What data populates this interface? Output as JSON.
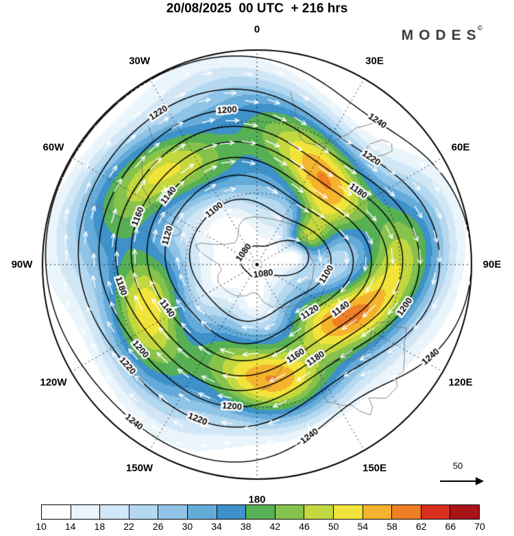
{
  "header": {
    "title": "20/08/2025  00 UTC  + 216 hrs",
    "logo_text": "MODES",
    "logo_sup": "©"
  },
  "reference_arrow": {
    "label": "50"
  },
  "chart_data": {
    "type": "heatmap",
    "projection": "south polar stereographic",
    "title": "20/08/2025 00 UTC + 216 hrs",
    "shaded_field": "wind speed",
    "contour_field": "geopotential height",
    "colorbar_range": [
      10,
      70
    ],
    "colorbar_bin_size": 4,
    "colorbar_ticks": [
      10,
      14,
      18,
      22,
      26,
      30,
      34,
      38,
      42,
      46,
      50,
      54,
      58,
      62,
      66,
      70
    ],
    "palette": [
      "#ffffff",
      "#eaf4fb",
      "#d2e7f6",
      "#b4d8f0",
      "#8fc4e7",
      "#65abd9",
      "#3e91c9",
      "#58b054",
      "#86c24c",
      "#c3d83f",
      "#f2e33b",
      "#f5b32e",
      "#ee7f24",
      "#d92f1e",
      "#a81418"
    ],
    "contour_levels": [
      1080,
      1100,
      1120,
      1140,
      1160,
      1180,
      1200,
      1220,
      1240
    ],
    "contour_labels": [
      {
        "level": 1080,
        "bearing": -48
      },
      {
        "level": 1080,
        "bearing": 146
      },
      {
        "level": 1100,
        "bearing": -38
      },
      {
        "level": 1100,
        "bearing": 98
      },
      {
        "level": 1120,
        "bearing": -72
      },
      {
        "level": 1120,
        "bearing": 132
      },
      {
        "level": 1140,
        "bearing": -116
      },
      {
        "level": 1140,
        "bearing": 118
      },
      {
        "level": 1140,
        "bearing": -52
      },
      {
        "level": 1160,
        "bearing": -68
      },
      {
        "level": 1160,
        "bearing": 157
      },
      {
        "level": 1180,
        "bearing": -99
      },
      {
        "level": 1180,
        "bearing": 54
      },
      {
        "level": 1180,
        "bearing": 148
      },
      {
        "level": 1200,
        "bearing": -11
      },
      {
        "level": 1200,
        "bearing": 106
      },
      {
        "level": 1200,
        "bearing": -126
      },
      {
        "level": 1200,
        "bearing": -170
      },
      {
        "level": 1220,
        "bearing": -33
      },
      {
        "level": 1220,
        "bearing": 47
      },
      {
        "level": 1220,
        "bearing": -128
      },
      {
        "level": 1220,
        "bearing": -159
      },
      {
        "level": 1240,
        "bearing": 40
      },
      {
        "level": 1240,
        "bearing": 118
      },
      {
        "level": 1240,
        "bearing": 163
      },
      {
        "level": 1240,
        "bearing": -142
      }
    ],
    "longitude_labels": [
      {
        "text": "0",
        "bearing": 0
      },
      {
        "text": "30E",
        "bearing": 30
      },
      {
        "text": "60E",
        "bearing": 60
      },
      {
        "text": "90E",
        "bearing": 90
      },
      {
        "text": "120E",
        "bearing": 120
      },
      {
        "text": "150E",
        "bearing": 150
      },
      {
        "text": "180",
        "bearing": 180
      },
      {
        "text": "150W",
        "bearing": 210
      },
      {
        "text": "120W",
        "bearing": 240
      },
      {
        "text": "90W",
        "bearing": 270
      },
      {
        "text": "60W",
        "bearing": 300
      },
      {
        "text": "30W",
        "bearing": 330
      }
    ],
    "latitude_circle_rhos": [
      0.3333,
      0.6667
    ],
    "meridian_step_deg": 30,
    "reference_arrow_value": 50
  },
  "coastlines": {
    "antarctica": [
      [
        0,
        -70
      ],
      [
        15,
        -70
      ],
      [
        30,
        -69
      ],
      [
        45,
        -67
      ],
      [
        60,
        -66
      ],
      [
        75,
        -68
      ],
      [
        90,
        -66
      ],
      [
        105,
        -66
      ],
      [
        120,
        -66
      ],
      [
        135,
        -66
      ],
      [
        150,
        -69
      ],
      [
        160,
        -71
      ],
      [
        170,
        -74
      ],
      [
        180,
        -78
      ],
      [
        190,
        -78
      ],
      [
        200,
        -76
      ],
      [
        215,
        -74
      ],
      [
        230,
        -73
      ],
      [
        245,
        -72
      ],
      [
        255,
        -73
      ],
      [
        262,
        -75
      ],
      [
        270,
        -74
      ],
      [
        276,
        -71
      ],
      [
        281,
        -67
      ],
      [
        285,
        -64
      ],
      [
        288,
        -63
      ],
      [
        291,
        -65
      ],
      [
        294,
        -69
      ],
      [
        298,
        -72
      ],
      [
        305,
        -75
      ],
      [
        315,
        -77
      ],
      [
        325,
        -76
      ],
      [
        335,
        -72
      ],
      [
        345,
        -70
      ],
      [
        355,
        -70
      ],
      [
        0,
        -70
      ]
    ],
    "australia": [
      [
        113,
        -22
      ],
      [
        114,
        -26
      ],
      [
        114,
        -31
      ],
      [
        116,
        -34
      ],
      [
        119,
        -35
      ],
      [
        124,
        -33
      ],
      [
        129,
        -32
      ],
      [
        132,
        -32
      ],
      [
        134,
        -33
      ],
      [
        136,
        -35
      ],
      [
        138,
        -35
      ],
      [
        140,
        -38
      ],
      [
        144,
        -39
      ],
      [
        147,
        -38
      ],
      [
        150,
        -37
      ],
      [
        152,
        -33
      ],
      [
        153,
        -28
      ],
      [
        153,
        -25
      ],
      [
        151,
        -24
      ],
      [
        149,
        -21
      ],
      [
        146,
        -19
      ],
      [
        145,
        -15
      ],
      [
        143,
        -11
      ],
      [
        141,
        -13
      ],
      [
        140,
        -17
      ],
      [
        136,
        -12
      ],
      [
        133,
        -12
      ],
      [
        131,
        -12
      ],
      [
        129,
        -15
      ],
      [
        126,
        -14
      ],
      [
        122,
        -17
      ],
      [
        118,
        -20
      ],
      [
        115,
        -21
      ],
      [
        113,
        -22
      ]
    ],
    "tasmania": [
      [
        145,
        -41
      ],
      [
        146,
        -43
      ],
      [
        148,
        -42
      ],
      [
        147,
        -41
      ],
      [
        145,
        -41
      ]
    ],
    "south_america": [
      [
        -70,
        -16
      ],
      [
        -70,
        -20
      ],
      [
        -70,
        -24
      ],
      [
        -71,
        -28
      ],
      [
        -71,
        -32
      ],
      [
        -72,
        -36
      ],
      [
        -73,
        -40
      ],
      [
        -74,
        -45
      ],
      [
        -74,
        -49
      ],
      [
        -72,
        -52
      ],
      [
        -69,
        -55
      ],
      [
        -66,
        -55
      ],
      [
        -65,
        -52
      ],
      [
        -65,
        -48
      ],
      [
        -64,
        -44
      ],
      [
        -62,
        -40
      ],
      [
        -58,
        -36
      ],
      [
        -56,
        -32
      ],
      [
        -51,
        -28
      ],
      [
        -48,
        -25
      ],
      [
        -44,
        -23
      ],
      [
        -40,
        -22
      ],
      [
        -38,
        -16
      ]
    ],
    "africa": [
      [
        11,
        -16
      ],
      [
        12,
        -19
      ],
      [
        14,
        -23
      ],
      [
        15,
        -27
      ],
      [
        17,
        -31
      ],
      [
        19,
        -34
      ],
      [
        22,
        -35
      ],
      [
        26,
        -34
      ],
      [
        29,
        -32
      ],
      [
        31,
        -30
      ],
      [
        33,
        -27
      ],
      [
        35,
        -23
      ],
      [
        36,
        -19
      ],
      [
        38,
        -16
      ],
      [
        40,
        -12
      ]
    ],
    "madagascar": [
      [
        44,
        -25
      ],
      [
        43,
        -21
      ],
      [
        45,
        -16
      ],
      [
        48,
        -14
      ],
      [
        50,
        -16
      ],
      [
        49,
        -20
      ],
      [
        47,
        -24
      ],
      [
        44,
        -25
      ]
    ],
    "new_zealand_south": [
      [
        166,
        -46
      ],
      [
        168,
        -44
      ],
      [
        171,
        -42
      ],
      [
        173,
        -41
      ]
    ],
    "new_zealand_north": [
      [
        173,
        -39
      ],
      [
        175,
        -38
      ],
      [
        177,
        -38
      ],
      [
        178,
        -37
      ]
    ]
  }
}
